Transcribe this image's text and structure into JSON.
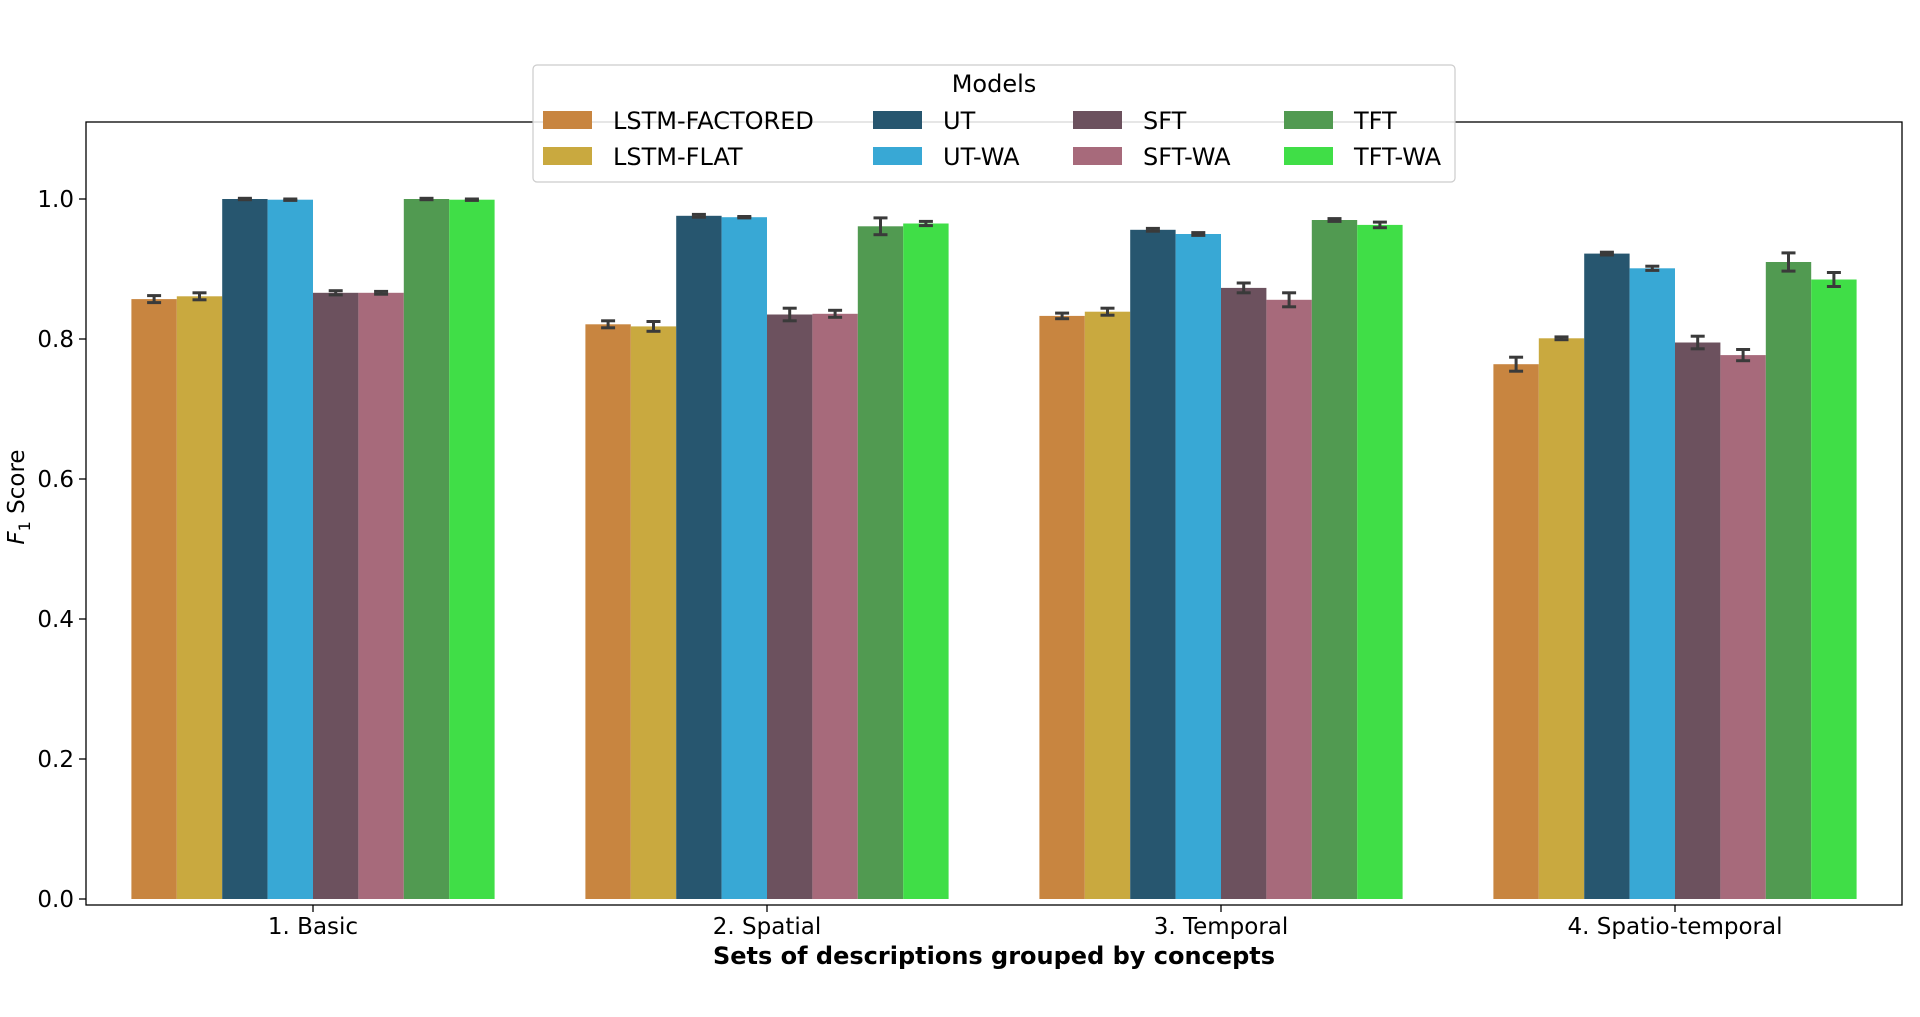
{
  "chart_data": {
    "type": "bar",
    "title": "",
    "xlabel": "Sets of descriptions grouped by concepts",
    "ylabel_main": "F",
    "ylabel_sub": "1",
    "ylabel_rest": " Score",
    "ylim": [
      0,
      1.1
    ],
    "yticks": [
      0.0,
      0.2,
      0.4,
      0.6,
      0.8,
      1.0
    ],
    "ytick_labels": [
      "0.0",
      "0.2",
      "0.4",
      "0.6",
      "0.8",
      "1.0"
    ],
    "categories": [
      "1. Basic",
      "2. Spatial",
      "3. Temporal",
      "4. Spatio-temporal"
    ],
    "legend": {
      "title": "Models",
      "placement": "top-center",
      "columns": 4
    },
    "series": [
      {
        "name": "LSTM-FACTORED",
        "color": "#c88540",
        "values": [
          0.857,
          0.821,
          0.833,
          0.764
        ],
        "errors": [
          0.005,
          0.005,
          0.004,
          0.01
        ]
      },
      {
        "name": "LSTM-FLAT",
        "color": "#c9a93f",
        "values": [
          0.861,
          0.818,
          0.839,
          0.801
        ],
        "errors": [
          0.005,
          0.007,
          0.005,
          0.002
        ]
      },
      {
        "name": "UT",
        "color": "#27566f",
        "values": [
          1.0,
          0.976,
          0.956,
          0.922
        ],
        "errors": [
          0.001,
          0.002,
          0.002,
          0.002
        ]
      },
      {
        "name": "UT-WA",
        "color": "#38a8d5",
        "values": [
          0.999,
          0.974,
          0.95,
          0.901
        ],
        "errors": [
          0.001,
          0.001,
          0.002,
          0.003
        ]
      },
      {
        "name": "SFT",
        "color": "#6c515e",
        "values": [
          0.866,
          0.835,
          0.873,
          0.795
        ],
        "errors": [
          0.003,
          0.009,
          0.007,
          0.009
        ]
      },
      {
        "name": "SFT-WA",
        "color": "#a76a7b",
        "values": [
          0.866,
          0.836,
          0.856,
          0.777
        ],
        "errors": [
          0.002,
          0.005,
          0.01,
          0.008
        ]
      },
      {
        "name": "TFT",
        "color": "#519a51",
        "values": [
          1.0,
          0.961,
          0.97,
          0.91
        ],
        "errors": [
          0.001,
          0.012,
          0.002,
          0.013
        ]
      },
      {
        "name": "TFT-WA",
        "color": "#40de47",
        "values": [
          0.999,
          0.965,
          0.963,
          0.885
        ],
        "errors": [
          0.001,
          0.003,
          0.004,
          0.01
        ]
      }
    ]
  }
}
